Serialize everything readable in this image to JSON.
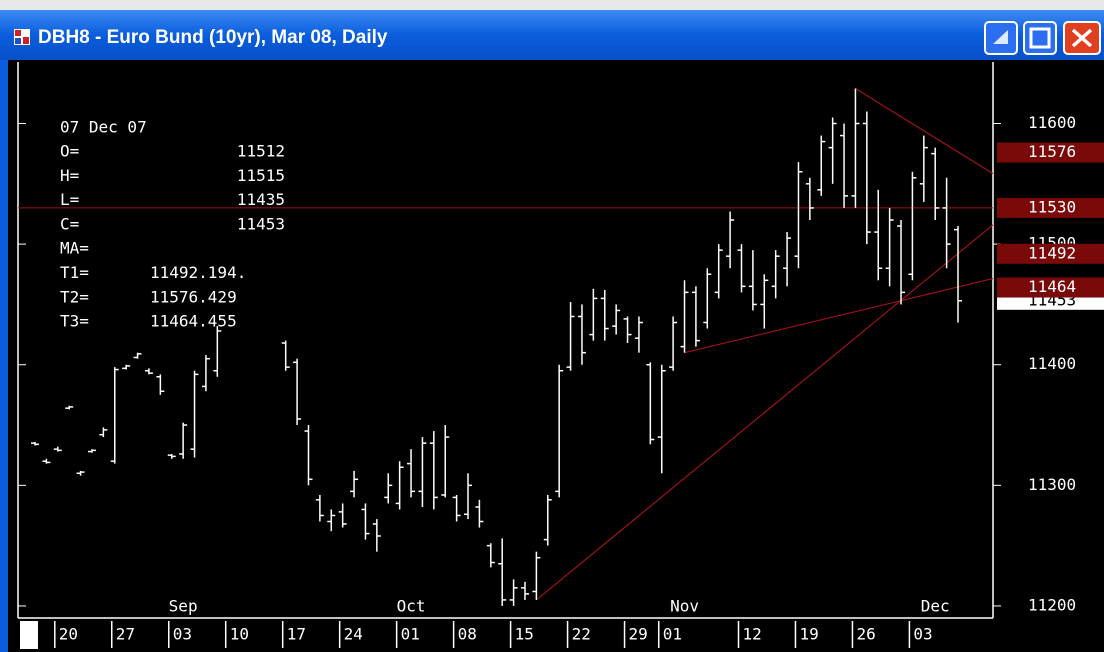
{
  "chart_data": {
    "type": "ohlc",
    "title": "DBH8 - Euro Bund (10yr), Mar 08, Daily",
    "categories": [
      null,
      null,
      "20",
      null,
      null,
      null,
      null,
      "27",
      null,
      null,
      null,
      null,
      "03",
      null,
      null,
      null,
      null,
      "10",
      null,
      null,
      null,
      null,
      "17",
      null,
      null,
      null,
      null,
      "24",
      null,
      null,
      null,
      null,
      "01",
      null,
      null,
      null,
      null,
      "08",
      null,
      null,
      null,
      null,
      "15",
      null,
      null,
      null,
      null,
      "22",
      null,
      null,
      null,
      null,
      "29",
      null,
      null,
      "01",
      null,
      null,
      null,
      null,
      null,
      null,
      "12",
      null,
      null,
      null,
      null,
      "19",
      null,
      null,
      null,
      null,
      "26",
      null,
      null,
      null,
      null,
      "03",
      null,
      null,
      null,
      null
    ],
    "months": [
      null,
      null,
      null,
      null,
      null,
      null,
      null,
      null,
      null,
      null,
      null,
      null,
      null,
      "Sep",
      null,
      null,
      null,
      null,
      null,
      null,
      null,
      null,
      null,
      null,
      null,
      null,
      null,
      null,
      null,
      null,
      null,
      null,
      null,
      "Oct",
      null,
      null,
      null,
      null,
      null,
      null,
      null,
      null,
      null,
      null,
      null,
      null,
      null,
      null,
      null,
      null,
      null,
      null,
      null,
      null,
      null,
      null,
      null,
      "Nov",
      null,
      null,
      null,
      null,
      null,
      null,
      null,
      null,
      null,
      null,
      null,
      null,
      null,
      null,
      null,
      null,
      null,
      null,
      null,
      null,
      null,
      "Dec",
      null,
      null
    ],
    "high": [
      11336,
      11322,
      11332,
      11366,
      11312,
      11330,
      11348,
      11398,
      11400,
      11410,
      11397,
      11392,
      11326,
      11352,
      11395,
      11408,
      11432,
      null,
      null,
      null,
      null,
      null,
      11420,
      11405,
      11350,
      11292,
      11280,
      11285,
      11312,
      11285,
      11272,
      11310,
      11320,
      11330,
      11340,
      11345,
      11350,
      11292,
      11310,
      11288,
      11252,
      11256,
      11222,
      11220,
      11245,
      11292,
      11400,
      11452,
      11450,
      11463,
      11462,
      11450,
      11440,
      11440,
      11402,
      11400,
      11440,
      11470,
      11465,
      11480,
      11500,
      11527,
      11500,
      11495,
      11475,
      11495,
      11510,
      11568,
      11555,
      11590,
      11605,
      11600,
      11629,
      11610,
      11545,
      11530,
      11520,
      11560,
      11590,
      11580,
      11555,
      11515
    ],
    "low": [
      11333,
      11318,
      11328,
      11363,
      11308,
      11327,
      11340,
      11318,
      11396,
      11405,
      11392,
      11375,
      11322,
      11322,
      11323,
      11378,
      11390,
      null,
      null,
      null,
      null,
      null,
      11395,
      11350,
      11300,
      11270,
      11262,
      11265,
      11290,
      11255,
      11245,
      11285,
      11280,
      11290,
      11282,
      11280,
      11290,
      11270,
      11272,
      11265,
      11232,
      11200,
      11200,
      11205,
      11205,
      11250,
      11290,
      11395,
      11400,
      11420,
      11420,
      11425,
      11418,
      11410,
      11334,
      11310,
      11395,
      11410,
      11415,
      11430,
      11455,
      11480,
      11460,
      11445,
      11430,
      11455,
      11465,
      11480,
      11520,
      11540,
      11550,
      11530,
      11530,
      11500,
      11470,
      11465,
      11450,
      11470,
      11535,
      11520,
      11480,
      11435
    ],
    "open": [
      11335,
      11320,
      11330,
      11364,
      11310,
      11328,
      11342,
      11320,
      11397,
      11406,
      11395,
      11390,
      11325,
      11326,
      11330,
      11382,
      11395,
      null,
      null,
      null,
      null,
      null,
      11418,
      11402,
      11345,
      11288,
      11270,
      11278,
      11295,
      11280,
      11268,
      11290,
      11285,
      11318,
      11295,
      11335,
      11292,
      11290,
      11276,
      11282,
      11250,
      11235,
      11205,
      11215,
      11212,
      11255,
      11295,
      11398,
      11440,
      11425,
      11455,
      11432,
      11438,
      11422,
      11400,
      11340,
      11398,
      11415,
      11460,
      11435,
      11460,
      11490,
      11495,
      11465,
      11450,
      11465,
      11480,
      11490,
      11550,
      11545,
      11580,
      11590,
      11540,
      11600,
      11510,
      11480,
      11515,
      11475,
      11550,
      11575,
      11530,
      11512
    ],
    "close": [
      11334,
      11319,
      11329,
      11365,
      11311,
      11329,
      11346,
      11396,
      11399,
      11409,
      11393,
      11378,
      11324,
      11350,
      11392,
      11405,
      11428,
      null,
      null,
      null,
      null,
      null,
      11398,
      11355,
      11305,
      11275,
      11275,
      11268,
      11305,
      11260,
      11258,
      11300,
      11315,
      11295,
      11335,
      11290,
      11340,
      11275,
      11300,
      11270,
      11236,
      11205,
      11215,
      11210,
      11240,
      11288,
      11395,
      11440,
      11410,
      11455,
      11430,
      11445,
      11425,
      11435,
      11338,
      11395,
      11435,
      11460,
      11420,
      11475,
      11495,
      11520,
      11465,
      11450,
      11470,
      11490,
      11505,
      11560,
      11530,
      11585,
      11600,
      11540,
      11600,
      11510,
      11480,
      11520,
      11460,
      11555,
      11580,
      11530,
      11500,
      11453
    ],
    "color": "#ffffff",
    "ylim": [
      11190,
      11651
    ],
    "yticks": [
      11200,
      11300,
      11400,
      11500,
      11600
    ],
    "hline": 11530,
    "line_color": "#a01414",
    "marker_color": "#7a0a0a",
    "trendlines": [
      {
        "name": "T1=",
        "from_index": 44,
        "from_value": 11205,
        "value": 11492.194,
        "value_label": "11492.194.",
        "marker": 11492
      },
      {
        "name": "T2=",
        "from_index": 72,
        "from_value": 11629,
        "value": 11576.429,
        "marker": 11576
      },
      {
        "name": "T3=",
        "from_index": 57,
        "from_value": 11410,
        "value": 11464.455,
        "marker": 11464
      }
    ],
    "info": {
      "date": "07 Dec 07",
      "ohlc_labels": [
        "O=",
        "H=",
        "L=",
        "C="
      ],
      "ma_label": "MA="
    }
  }
}
